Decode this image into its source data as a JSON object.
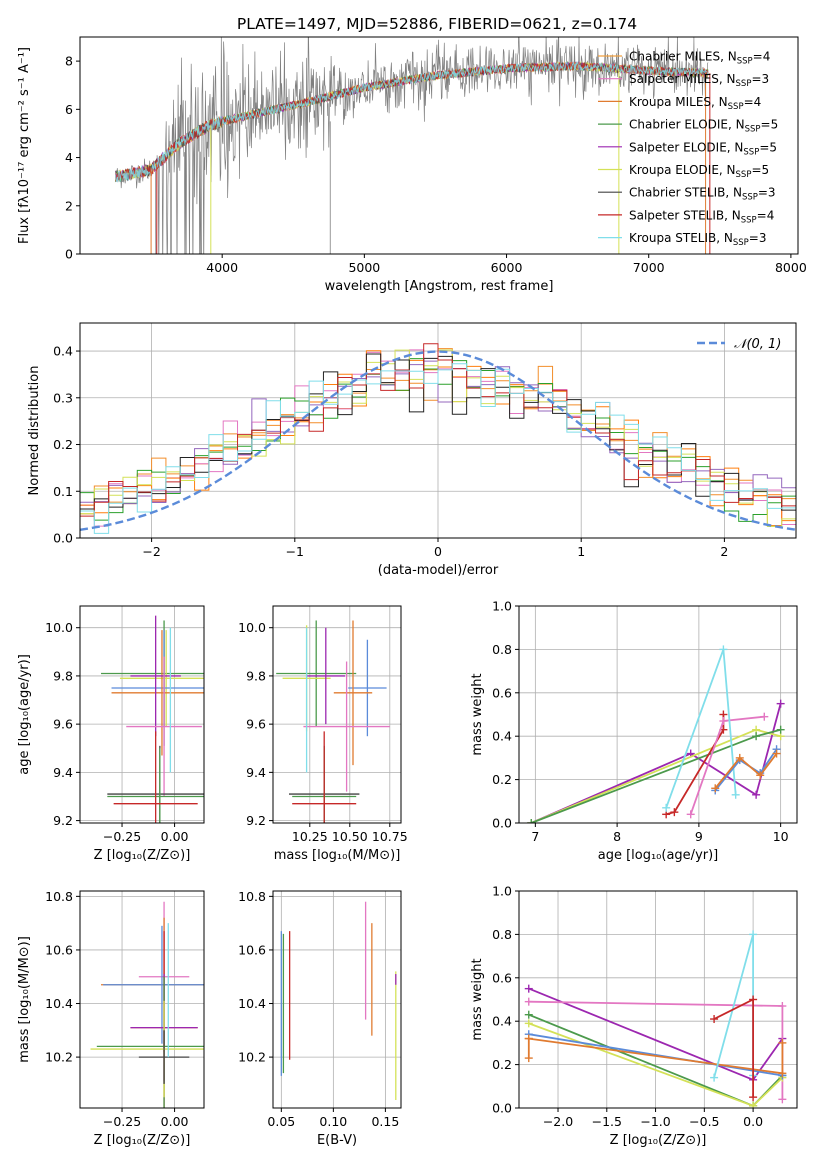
{
  "title": "PLATE=1497, MJD=52886, FIBERID=0621, z=0.174",
  "colors": [
    "#f28e2b",
    "#e377c2",
    "#ff7f0e",
    "#2ca02c",
    "#9467bd",
    "#d4e157",
    "#222222",
    "#c62828",
    "#80deea"
  ],
  "chart_data": [
    {
      "id": "spectrum",
      "type": "line",
      "xlabel": "wavelength [Angstrom, rest frame]",
      "ylabel": "Flux [fλ10⁻¹⁷ erg cm⁻² s⁻¹ A⁻¹]",
      "xlim": [
        3000,
        8050
      ],
      "ylim": [
        0,
        9
      ],
      "xticks": [
        4000,
        5000,
        6000,
        7000,
        8000
      ],
      "yticks": [
        0,
        2,
        4,
        6,
        8
      ],
      "data_color": "#808080",
      "model_color": "#80d8e0",
      "continuum": [
        [
          3250,
          3.2
        ],
        [
          3500,
          3.5
        ],
        [
          3700,
          4.6
        ],
        [
          3900,
          5.3
        ],
        [
          4000,
          5.5
        ],
        [
          4300,
          5.9
        ],
        [
          4600,
          6.3
        ],
        [
          5000,
          6.9
        ],
        [
          5500,
          7.4
        ],
        [
          6000,
          7.7
        ],
        [
          6500,
          7.8
        ],
        [
          7000,
          7.6
        ],
        [
          7400,
          7.5
        ]
      ],
      "legend_location": "upper right",
      "legend": [
        {
          "label": "Chabrier MILES, N",
          "sub": "SSP",
          "suffix": "=4",
          "color": "#f0a040"
        },
        {
          "label": "Salpeter MILES, N",
          "sub": "SSP",
          "suffix": "=3",
          "color": "#e377c2"
        },
        {
          "label": "Kroupa MILES, N",
          "sub": "SSP",
          "suffix": "=4",
          "color": "#e07b30"
        },
        {
          "label": "Chabrier ELODIE, N",
          "sub": "SSP",
          "suffix": "=5",
          "color": "#4c9a4c"
        },
        {
          "label": "Salpeter ELODIE, N",
          "sub": "SSP",
          "suffix": "=5",
          "color": "#9c27b0"
        },
        {
          "label": "Kroupa ELODIE, N",
          "sub": "SSP",
          "suffix": "=5",
          "color": "#d4e157"
        },
        {
          "label": "Chabrier STELIB, N",
          "sub": "SSP",
          "suffix": "=3",
          "color": "#444444"
        },
        {
          "label": "Salpeter STELIB, N",
          "sub": "SSP",
          "suffix": "=4",
          "color": "#c62828"
        },
        {
          "label": "Kroupa STELIB, N",
          "sub": "SSP",
          "suffix": "=3",
          "color": "#80deea"
        }
      ]
    },
    {
      "id": "residual_hist",
      "type": "histogram",
      "xlabel": "(data-model)/error",
      "ylabel": "Normed distribution",
      "xlim": [
        -2.5,
        2.5
      ],
      "ylim": [
        0,
        0.46
      ],
      "xticks": [
        -2,
        -1,
        0,
        1,
        2
      ],
      "yticks": [
        0.0,
        0.1,
        0.2,
        0.3,
        0.4
      ],
      "grid": true,
      "bin_width": 0.1,
      "legend": "𝒩(0, 1)",
      "legend_location": "upper right",
      "gaussian": {
        "mu": 0,
        "sigma": 1,
        "color": "#5b8bd9"
      }
    },
    {
      "id": "age_vs_Z",
      "type": "errorbar",
      "xlabel": "Z [log₁₀(Z/Z⊙)]",
      "ylabel": "age  [log₁₀(age/yr)]",
      "xlim": [
        -0.45,
        0.14
      ],
      "ylim": [
        9.19,
        10.09
      ],
      "xticks": [
        -0.25,
        0.0
      ],
      "yticks": [
        9.2,
        9.4,
        9.6,
        9.8,
        10.0
      ],
      "grid": true,
      "points": [
        {
          "x": -0.05,
          "y": 9.81,
          "xerr": 0.3,
          "yerr": 0.22,
          "color": "#4c9a4c"
        },
        {
          "x": -0.04,
          "y": 9.79,
          "xerr": 0.22,
          "yerr": 0.2,
          "color": "#d4e157"
        },
        {
          "x": -0.05,
          "y": 9.75,
          "xerr": 0.25,
          "yerr": 0.24,
          "color": "#5b8bd9"
        },
        {
          "x": -0.06,
          "y": 9.73,
          "xerr": 0.24,
          "yerr": 0.26,
          "color": "#e07b30"
        },
        {
          "x": -0.09,
          "y": 9.8,
          "xerr": 0.12,
          "yerr": 0.25,
          "color": "#9c27b0"
        },
        {
          "x": -0.05,
          "y": 9.59,
          "xerr": 0.18,
          "yerr": 0.29,
          "color": "#e377c2"
        },
        {
          "x": -0.07,
          "y": 9.31,
          "xerr": 0.25,
          "yerr": 0.2,
          "color": "#444444"
        },
        {
          "x": -0.07,
          "y": 9.3,
          "xerr": 0.25,
          "yerr": 0.2,
          "color": "#4c9a4c"
        },
        {
          "x": -0.09,
          "y": 9.27,
          "xerr": 0.2,
          "yerr": 0.3,
          "color": "#c62828"
        },
        {
          "x": -0.02,
          "y": 9.7,
          "xerr": 0.0,
          "yerr": 0.3,
          "color": "#80deea"
        }
      ]
    },
    {
      "id": "age_vs_mass",
      "type": "errorbar",
      "xlabel": "mass [log₁₀(M/M⊙)]",
      "ylabel": "",
      "xlim": [
        10.02,
        10.82
      ],
      "ylim": [
        9.19,
        10.09
      ],
      "xticks": [
        10.25,
        10.5,
        10.75
      ],
      "yticks": [
        9.2,
        9.4,
        9.6,
        9.8,
        10.0
      ],
      "grid": true,
      "points": [
        {
          "x": 10.29,
          "y": 9.81,
          "xerr": 0.25,
          "yerr": 0.22,
          "color": "#4c9a4c"
        },
        {
          "x": 10.23,
          "y": 9.79,
          "xerr": 0.15,
          "yerr": 0.22,
          "color": "#d4e157"
        },
        {
          "x": 10.61,
          "y": 9.75,
          "xerr": 0.12,
          "yerr": 0.2,
          "color": "#5b8bd9"
        },
        {
          "x": 10.52,
          "y": 9.73,
          "xerr": 0.12,
          "yerr": 0.3,
          "color": "#e07b30"
        },
        {
          "x": 10.35,
          "y": 9.8,
          "xerr": 0.12,
          "yerr": 0.2,
          "color": "#9c27b0"
        },
        {
          "x": 10.48,
          "y": 9.59,
          "xerr": 0.27,
          "yerr": 0.27,
          "color": "#e377c2"
        },
        {
          "x": 10.34,
          "y": 9.31,
          "xerr": 0.22,
          "yerr": 0.2,
          "color": "#444444"
        },
        {
          "x": 10.34,
          "y": 9.3,
          "xerr": 0.2,
          "yerr": 0.2,
          "color": "#4c9a4c"
        },
        {
          "x": 10.34,
          "y": 9.27,
          "xerr": 0.2,
          "yerr": 0.3,
          "color": "#c62828"
        },
        {
          "x": 10.23,
          "y": 9.7,
          "xerr": 0.0,
          "yerr": 0.3,
          "color": "#80deea"
        }
      ]
    },
    {
      "id": "massweight_vs_age",
      "type": "line",
      "xlabel": "age  [log₁₀(age/yr)]",
      "ylabel": "mass weight",
      "xlim": [
        6.8,
        10.2
      ],
      "ylim": [
        0,
        1.0
      ],
      "xticks": [
        7,
        8,
        9,
        10
      ],
      "yticks": [
        0.0,
        0.2,
        0.4,
        0.6,
        0.8,
        1.0
      ],
      "grid": true,
      "series": [
        {
          "color": "#9c27b0",
          "x": [
            6.95,
            8.9,
            9.7,
            10.0
          ],
          "y": [
            0.0,
            0.32,
            0.13,
            0.55
          ]
        },
        {
          "color": "#d4e157",
          "x": [
            6.95,
            9.7,
            10.0
          ],
          "y": [
            0.0,
            0.43,
            0.4
          ]
        },
        {
          "color": "#4c9a4c",
          "x": [
            6.95,
            9.7,
            10.0
          ],
          "y": [
            0.0,
            0.4,
            0.43
          ]
        },
        {
          "color": "#c62828",
          "x": [
            8.6,
            8.7,
            9.3,
            9.3
          ],
          "y": [
            0.04,
            0.05,
            0.43,
            0.5
          ]
        },
        {
          "color": "#e377c2",
          "x": [
            8.9,
            9.3,
            9.8
          ],
          "y": [
            0.04,
            0.47,
            0.49
          ]
        },
        {
          "color": "#80deea",
          "x": [
            8.6,
            9.3,
            9.45
          ],
          "y": [
            0.07,
            0.8,
            0.13
          ]
        },
        {
          "color": "#5b8bd9",
          "x": [
            9.2,
            9.5,
            9.75,
            9.95
          ],
          "y": [
            0.15,
            0.29,
            0.23,
            0.34
          ]
        },
        {
          "color": "#e07b30",
          "x": [
            9.2,
            9.5,
            9.75,
            9.95
          ],
          "y": [
            0.16,
            0.3,
            0.22,
            0.32
          ]
        }
      ]
    },
    {
      "id": "mass_vs_Z",
      "type": "errorbar",
      "xlabel": "Z [log₁₀(Z/Z⊙)]",
      "ylabel": "mass [log₁₀(M/M⊙)]",
      "xlim": [
        -0.45,
        0.14
      ],
      "ylim": [
        10.01,
        10.82
      ],
      "xticks": [
        -0.25,
        0.0
      ],
      "yticks": [
        10.2,
        10.4,
        10.6,
        10.8
      ],
      "grid": true,
      "points": [
        {
          "x": -0.05,
          "y": 10.5,
          "xerr": 0.12,
          "yerr": 0.28,
          "color": "#e377c2"
        },
        {
          "x": -0.05,
          "y": 10.47,
          "xerr": 0.3,
          "yerr": 0.25,
          "color": "#e07b30"
        },
        {
          "x": -0.06,
          "y": 10.47,
          "xerr": 0.28,
          "yerr": 0.22,
          "color": "#5b8bd9"
        },
        {
          "x": -0.05,
          "y": 10.31,
          "xerr": 0.16,
          "yerr": 0.36,
          "color": "#c62828"
        },
        {
          "x": -0.05,
          "y": 10.31,
          "xerr": 0.16,
          "yerr": 0.2,
          "color": "#9c27b0"
        },
        {
          "x": -0.05,
          "y": 10.24,
          "xerr": 0.32,
          "yerr": 0.26,
          "color": "#4c9a4c"
        },
        {
          "x": -0.05,
          "y": 10.23,
          "xerr": 0.35,
          "yerr": 0.18,
          "color": "#d4e157"
        },
        {
          "x": -0.05,
          "y": 10.2,
          "xerr": 0.12,
          "yerr": 0.1,
          "color": "#444444"
        },
        {
          "x": -0.03,
          "y": 10.45,
          "xerr": 0.0,
          "yerr": 0.25,
          "color": "#80deea"
        }
      ]
    },
    {
      "id": "mass_vs_EBV",
      "type": "errorbar",
      "xlabel": "E(B-V)",
      "ylabel": "",
      "xlim": [
        0.042,
        0.165
      ],
      "ylim": [
        10.01,
        10.82
      ],
      "xticks": [
        0.05,
        0.1,
        0.15
      ],
      "yticks": [
        10.2,
        10.4,
        10.6,
        10.8
      ],
      "grid": true,
      "points": [
        {
          "x": 0.05,
          "y": 10.4,
          "xerr": 0.0,
          "yerr": 0.27,
          "color": "#5b8bd9"
        },
        {
          "x": 0.052,
          "y": 10.4,
          "xerr": 0.0,
          "yerr": 0.26,
          "color": "#4c9a4c"
        },
        {
          "x": 0.058,
          "y": 10.43,
          "xerr": 0.0,
          "yerr": 0.24,
          "color": "#c62828"
        },
        {
          "x": 0.131,
          "y": 10.56,
          "xerr": 0.0,
          "yerr": 0.22,
          "color": "#e377c2"
        },
        {
          "x": 0.137,
          "y": 10.49,
          "xerr": 0.0,
          "yerr": 0.21,
          "color": "#e07b30"
        },
        {
          "x": 0.16,
          "y": 10.28,
          "xerr": 0.0,
          "yerr": 0.24,
          "color": "#d4e157"
        },
        {
          "x": 0.16,
          "y": 10.49,
          "xerr": 0.0,
          "yerr": 0.02,
          "color": "#9c27b0"
        }
      ]
    },
    {
      "id": "massweight_vs_Z",
      "type": "line",
      "xlabel": "Z [log₁₀(Z/Z⊙)]",
      "ylabel": "mass weight",
      "xlim": [
        -2.4,
        0.45
      ],
      "ylim": [
        0,
        1.0
      ],
      "xticks": [
        -2.0,
        -1.5,
        -1.0,
        -0.5,
        0.0
      ],
      "yticks": [
        0.0,
        0.2,
        0.4,
        0.6,
        0.8,
        1.0
      ],
      "grid": true,
      "series": [
        {
          "color": "#9c27b0",
          "x": [
            -2.3,
            0.0,
            0.3
          ],
          "y": [
            0.55,
            0.13,
            0.32
          ]
        },
        {
          "color": "#e377c2",
          "x": [
            -2.3,
            0.3,
            0.3
          ],
          "y": [
            0.49,
            0.47,
            0.04
          ]
        },
        {
          "color": "#4c9a4c",
          "x": [
            -2.3,
            0.0,
            0.3
          ],
          "y": [
            0.43,
            0.01,
            0.15
          ]
        },
        {
          "color": "#d4e157",
          "x": [
            -2.3,
            0.0,
            0.3
          ],
          "y": [
            0.39,
            0.01,
            0.14
          ]
        },
        {
          "color": "#5b8bd9",
          "x": [
            -2.3,
            0.3
          ],
          "y": [
            0.34,
            0.15
          ]
        },
        {
          "color": "#e07b30",
          "x": [
            -2.3,
            0.3,
            0.3
          ],
          "y": [
            0.32,
            0.16,
            0.3
          ]
        },
        {
          "color": "#80deea",
          "x": [
            -0.4,
            0.0,
            0.0
          ],
          "y": [
            0.14,
            0.8,
            0.15
          ]
        },
        {
          "color": "#c62828",
          "x": [
            -0.4,
            0.0,
            0.0
          ],
          "y": [
            0.41,
            0.5,
            0.05
          ]
        },
        {
          "color": "#e07b30",
          "x": [
            -2.3,
            -2.3
          ],
          "y": [
            0.23,
            0.32
          ]
        }
      ]
    }
  ]
}
